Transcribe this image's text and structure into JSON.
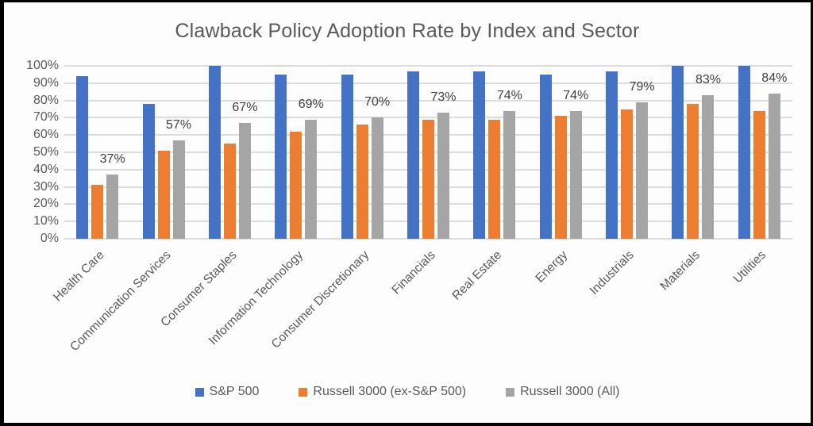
{
  "title": "Clawback Policy Adoption Rate by Index and Sector",
  "colors": {
    "sp500": "#4472C4",
    "russell_ex_sp500": "#ED7D31",
    "russell_all": "#A5A5A5",
    "title_text": "#595959",
    "axis_text": "#595959",
    "data_label_text": "#3F3F3F",
    "gridline": "#DCDCDC",
    "frame": "#000000",
    "background": "#FDFDFD"
  },
  "chart_data": {
    "type": "bar",
    "title": "Clawback Policy Adoption Rate by Index and Sector",
    "categories": [
      "Health Care",
      "Communication Services",
      "Consumer Staples",
      "Information Technology",
      "Consumer Discretionary",
      "Financials",
      "Real Estate",
      "Energy",
      "Industrials",
      "Materials",
      "Utilities"
    ],
    "series": [
      {
        "name": "S&P 500",
        "color": "#4472C4",
        "values": [
          94,
          78,
          100,
          95,
          95,
          97,
          97,
          95,
          97,
          100,
          100
        ]
      },
      {
        "name": "Russell 3000 (ex-S&P 500)",
        "color": "#ED7D31",
        "values": [
          31,
          51,
          55,
          62,
          66,
          69,
          69,
          71,
          75,
          78,
          74
        ]
      },
      {
        "name": "Russell 3000 (All)",
        "color": "#A5A5A5",
        "values": [
          37,
          57,
          67,
          69,
          70,
          73,
          74,
          74,
          79,
          83,
          84
        ],
        "data_labels": [
          "37%",
          "57%",
          "67%",
          "69%",
          "70%",
          "73%",
          "74%",
          "74%",
          "79%",
          "83%",
          "84%"
        ]
      }
    ],
    "y_axis": {
      "min": 0,
      "max": 100,
      "step": 10,
      "ticks": [
        "100%",
        "90%",
        "80%",
        "70%",
        "60%",
        "50%",
        "40%",
        "30%",
        "20%",
        "10%",
        "0%"
      ]
    },
    "x_axis_label": "",
    "y_axis_label": "",
    "grid": "horizontal",
    "legend_position": "bottom"
  }
}
